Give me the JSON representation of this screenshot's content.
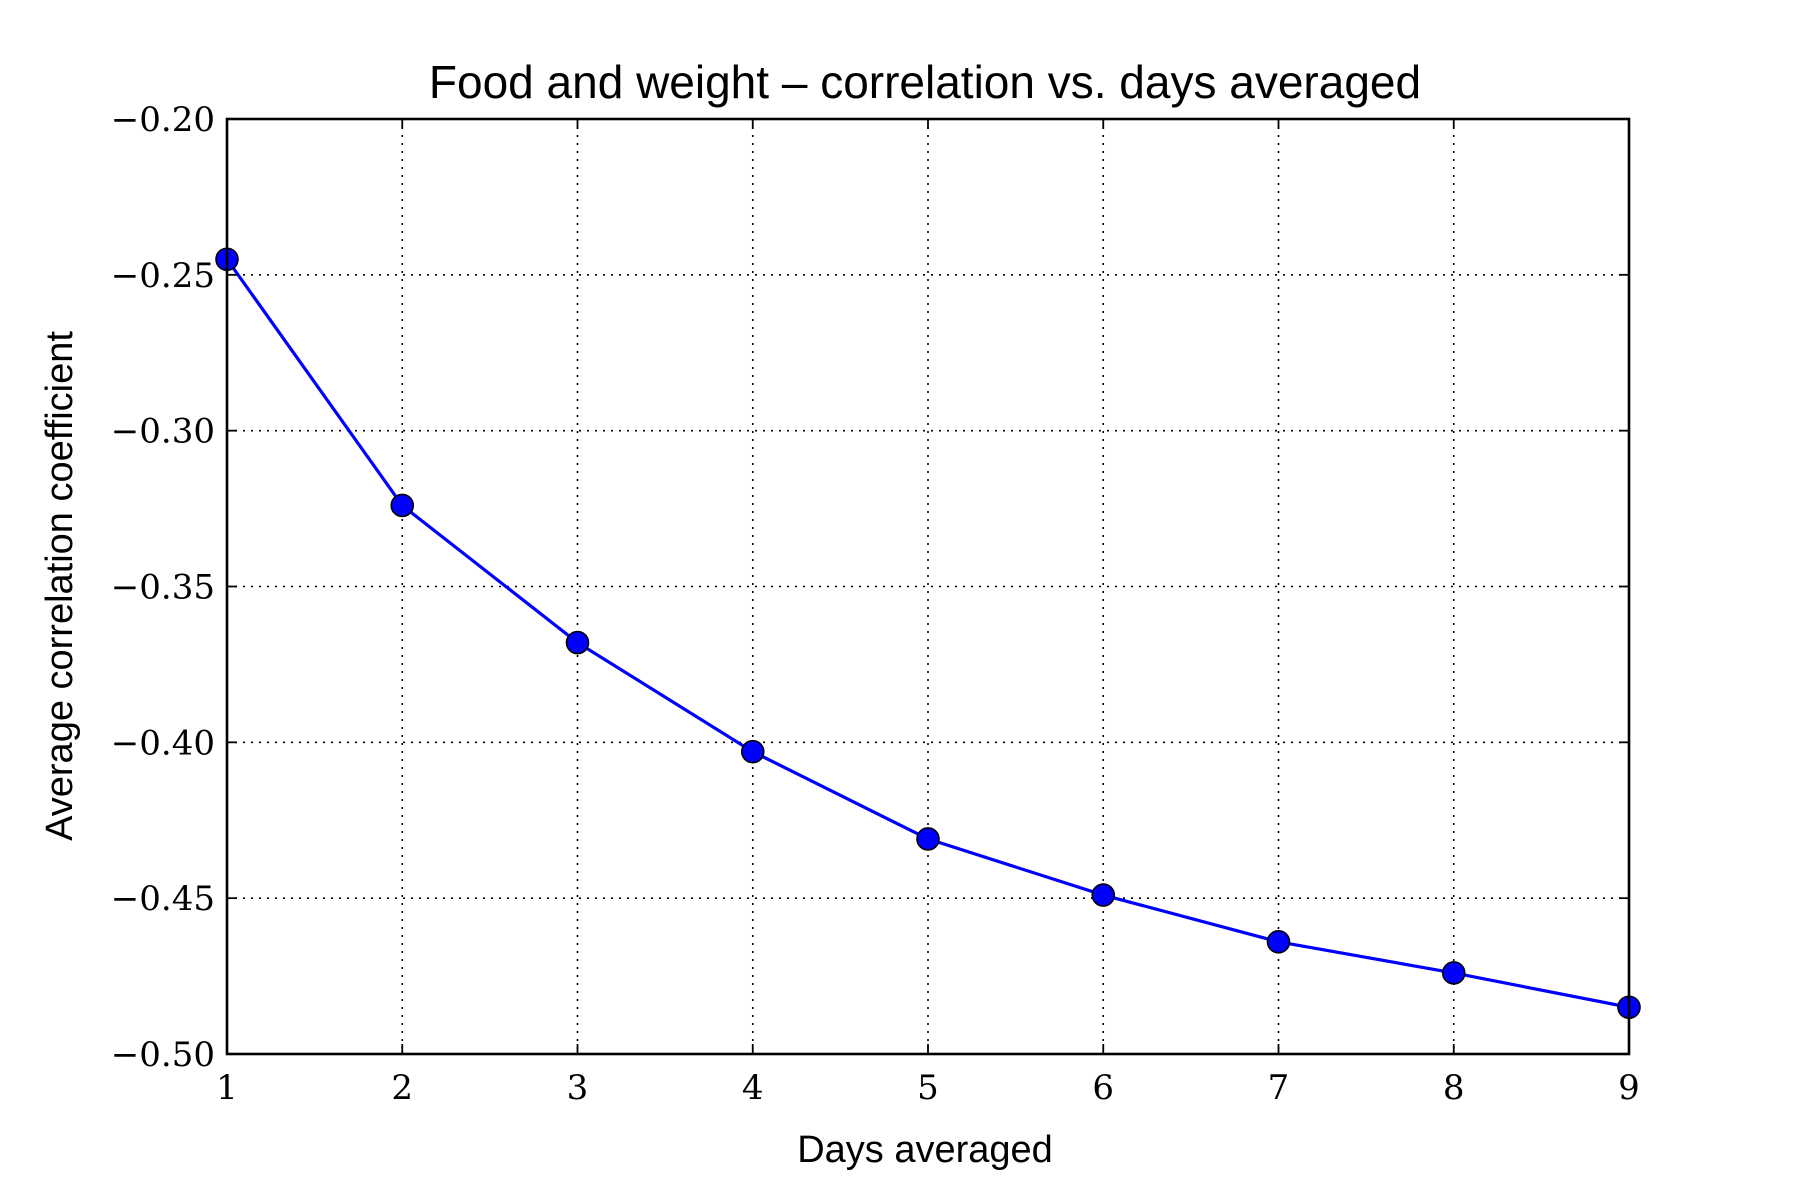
{
  "chart_data": {
    "type": "line",
    "title": "Food and weight – correlation vs. days averaged",
    "xlabel": "Days averaged",
    "ylabel": "Average correlation coefficient",
    "xlim": [
      1,
      9
    ],
    "ylim": [
      -0.5,
      -0.2
    ],
    "xticks": [
      "1",
      "2",
      "3",
      "4",
      "5",
      "6",
      "7",
      "8",
      "9"
    ],
    "yticks": [
      "−0.50",
      "−0.45",
      "−0.40",
      "−0.35",
      "−0.30",
      "−0.25",
      "−0.20"
    ],
    "ytick_values": [
      -0.5,
      -0.45,
      -0.4,
      -0.35,
      -0.3,
      -0.25,
      -0.2
    ],
    "grid": true,
    "series": [
      {
        "x": [
          1,
          2,
          3,
          4,
          5,
          6,
          7,
          8,
          9
        ],
        "values": [
          -0.245,
          -0.324,
          -0.368,
          -0.403,
          -0.431,
          -0.449,
          -0.464,
          -0.474,
          -0.485
        ],
        "color": "#0000ff",
        "marker": "circle"
      }
    ]
  }
}
